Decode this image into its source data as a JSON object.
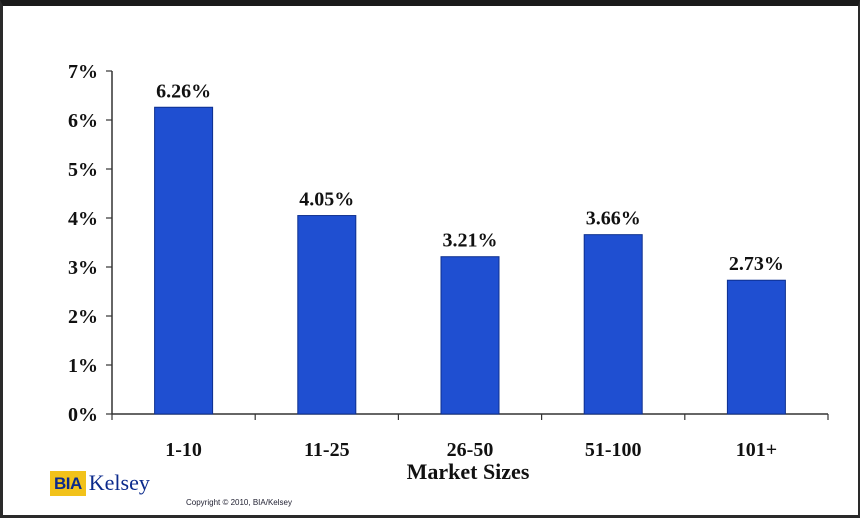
{
  "chart_data": {
    "type": "bar",
    "title": "",
    "xlabel": "Market Sizes",
    "ylabel": "",
    "categories": [
      "1-10",
      "11-25",
      "26-50",
      "51-100",
      "101+"
    ],
    "values": [
      6.26,
      4.05,
      3.21,
      3.66,
      2.73
    ],
    "value_labels": [
      "6.26%",
      "4.05%",
      "3.21%",
      "3.66%",
      "2.73%"
    ],
    "ylim": [
      0,
      7
    ],
    "yticks": [
      0,
      1,
      2,
      3,
      4,
      5,
      6,
      7
    ],
    "ytick_labels": [
      "0%",
      "1%",
      "2%",
      "3%",
      "4%",
      "5%",
      "6%",
      "7%"
    ],
    "grid": false,
    "legend": "none",
    "bar_color": "#1f4fd1"
  },
  "footer": {
    "logo_box_text": "BIA",
    "logo_text": "Kelsey",
    "copyright": "Copyright © 2010, BIA/Kelsey"
  }
}
